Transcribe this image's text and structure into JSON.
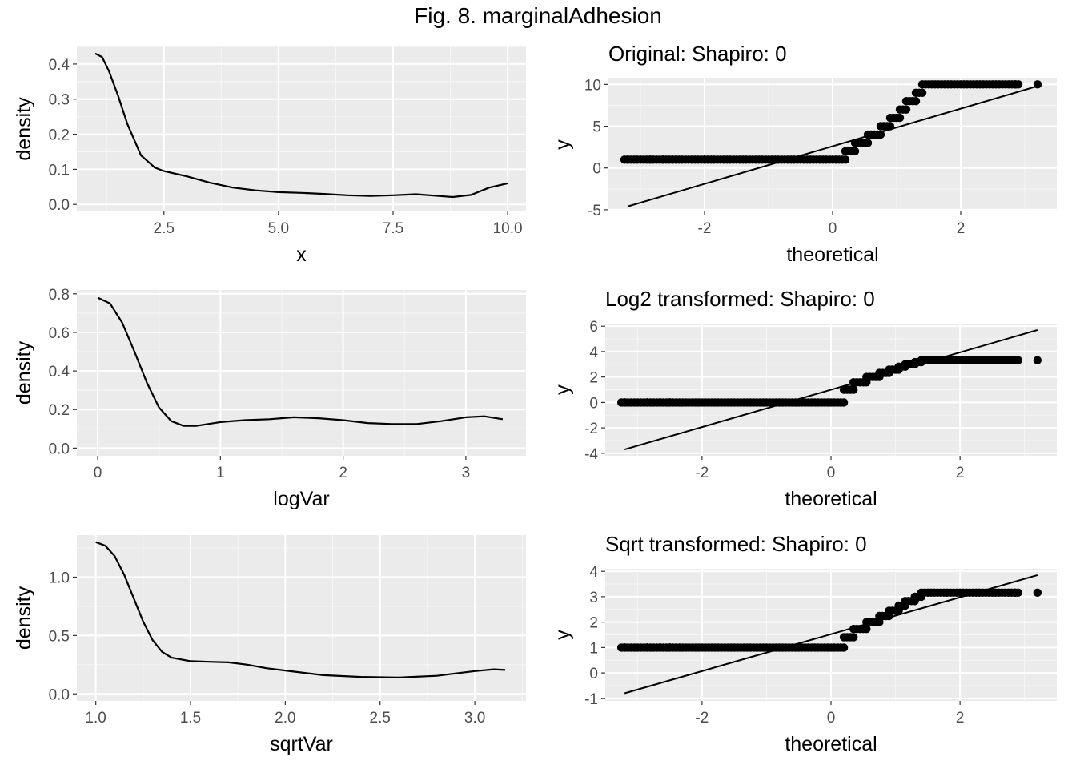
{
  "title": "Fig. 8. marginalAdhesion",
  "chart_data": [
    {
      "type": "line",
      "xlabel": "x",
      "ylabel": "density",
      "xlim": [
        0.6,
        10.4
      ],
      "ylim": [
        -0.02,
        0.45
      ],
      "xticks": [
        2.5,
        5.0,
        7.5,
        10.0
      ],
      "xtick_labels": [
        "2.5",
        "5.0",
        "7.5",
        "10.0"
      ],
      "yticks": [
        0.0,
        0.1,
        0.2,
        0.3,
        0.4
      ],
      "ytick_labels": [
        "0.0",
        "0.1",
        "0.2",
        "0.3",
        "0.4"
      ],
      "grid": true,
      "x": [
        1.0,
        1.15,
        1.3,
        1.5,
        1.7,
        2.0,
        2.3,
        2.5,
        3.0,
        3.5,
        4.0,
        4.5,
        5.0,
        5.5,
        6.0,
        6.5,
        7.0,
        7.5,
        8.0,
        8.5,
        8.8,
        9.2,
        9.6,
        10.0
      ],
      "y": [
        0.43,
        0.42,
        0.38,
        0.31,
        0.23,
        0.14,
        0.105,
        0.095,
        0.08,
        0.062,
        0.048,
        0.04,
        0.035,
        0.033,
        0.03,
        0.026,
        0.024,
        0.026,
        0.029,
        0.024,
        0.021,
        0.027,
        0.048,
        0.06
      ]
    },
    {
      "type": "scatter",
      "title": "Original: Shapiro: 0",
      "xlabel": "theoretical",
      "ylabel": "y",
      "xlim": [
        -3.5,
        3.5
      ],
      "ylim": [
        -5.2,
        10.8
      ],
      "xticks": [
        -2,
        0,
        2
      ],
      "xtick_labels": [
        "-2",
        "0",
        "2"
      ],
      "yticks": [
        -5,
        0,
        5,
        10
      ],
      "ytick_labels": [
        "-5",
        "0",
        "5",
        "10"
      ],
      "grid": true,
      "segments": [
        {
          "from": -3.25,
          "to": -2.0,
          "y": 1
        },
        {
          "from": -2.0,
          "to": 0.2,
          "y": 1
        },
        {
          "from": 0.2,
          "to": 0.35,
          "y": 2
        },
        {
          "from": 0.35,
          "to": 0.55,
          "y": 3
        },
        {
          "from": 0.55,
          "to": 0.75,
          "y": 4
        },
        {
          "from": 0.75,
          "to": 0.9,
          "y": 5
        },
        {
          "from": 0.9,
          "to": 1.05,
          "y": 6
        },
        {
          "from": 1.05,
          "to": 1.15,
          "y": 7
        },
        {
          "from": 1.15,
          "to": 1.3,
          "y": 8
        },
        {
          "from": 1.3,
          "to": 1.4,
          "y": 9
        },
        {
          "from": 1.4,
          "to": 2.9,
          "y": 10
        }
      ],
      "outliers": [
        [
          -3.2,
          1
        ],
        [
          -2.85,
          1
        ],
        [
          -2.65,
          1
        ],
        [
          -2.5,
          1
        ],
        [
          2.85,
          10
        ],
        [
          3.2,
          10
        ]
      ],
      "ref_line": {
        "x": [
          -3.2,
          3.2
        ],
        "y": [
          -4.6,
          9.8
        ]
      }
    },
    {
      "type": "line",
      "xlabel": "logVar",
      "ylabel": "density",
      "xlim": [
        -0.17,
        3.49
      ],
      "ylim": [
        -0.04,
        0.82
      ],
      "xticks": [
        0,
        1,
        2,
        3
      ],
      "xtick_labels": [
        "0",
        "1",
        "2",
        "3"
      ],
      "yticks": [
        0.0,
        0.2,
        0.4,
        0.6,
        0.8
      ],
      "ytick_labels": [
        "0.0",
        "0.2",
        "0.4",
        "0.6",
        "0.8"
      ],
      "grid": true,
      "x": [
        0.0,
        0.1,
        0.2,
        0.3,
        0.4,
        0.5,
        0.6,
        0.7,
        0.8,
        0.9,
        1.0,
        1.2,
        1.4,
        1.6,
        1.8,
        2.0,
        2.2,
        2.4,
        2.6,
        2.8,
        3.0,
        3.15,
        3.3
      ],
      "y": [
        0.78,
        0.75,
        0.65,
        0.5,
        0.34,
        0.21,
        0.14,
        0.115,
        0.115,
        0.125,
        0.135,
        0.145,
        0.15,
        0.16,
        0.155,
        0.145,
        0.13,
        0.125,
        0.125,
        0.14,
        0.16,
        0.165,
        0.15
      ]
    },
    {
      "type": "scatter",
      "title": "Log2 transformed: Shapiro: 0",
      "xlabel": "theoretical",
      "ylabel": "y",
      "xlim": [
        -3.5,
        3.5
      ],
      "ylim": [
        -4.2,
        6.2
      ],
      "xticks": [
        -2,
        0,
        2
      ],
      "xtick_labels": [
        "-2",
        "0",
        "2"
      ],
      "yticks": [
        -4,
        -2,
        0,
        2,
        4,
        6
      ],
      "ytick_labels": [
        "-4",
        "-2",
        "0",
        "2",
        "4",
        "6"
      ],
      "grid": true,
      "segments": [
        {
          "from": -3.25,
          "to": 0.2,
          "y": 0
        },
        {
          "from": 0.2,
          "to": 0.35,
          "y": 1
        },
        {
          "from": 0.35,
          "to": 0.55,
          "y": 1.58
        },
        {
          "from": 0.55,
          "to": 0.75,
          "y": 2
        },
        {
          "from": 0.75,
          "to": 0.9,
          "y": 2.32
        },
        {
          "from": 0.9,
          "to": 1.05,
          "y": 2.58
        },
        {
          "from": 1.05,
          "to": 1.15,
          "y": 2.81
        },
        {
          "from": 1.15,
          "to": 1.3,
          "y": 3
        },
        {
          "from": 1.3,
          "to": 1.4,
          "y": 3.17
        },
        {
          "from": 1.4,
          "to": 2.9,
          "y": 3.32
        }
      ],
      "outliers": [
        [
          -3.2,
          0
        ],
        [
          -2.85,
          0
        ],
        [
          -2.65,
          0
        ],
        [
          -2.5,
          0
        ],
        [
          2.85,
          3.32
        ],
        [
          3.2,
          3.32
        ]
      ],
      "ref_line": {
        "x": [
          -3.2,
          3.2
        ],
        "y": [
          -3.7,
          5.7
        ]
      }
    },
    {
      "type": "line",
      "xlabel": "sqrtVar",
      "ylabel": "density",
      "xlim": [
        0.9,
        3.27
      ],
      "ylim": [
        -0.06,
        1.36
      ],
      "xticks": [
        1.0,
        1.5,
        2.0,
        2.5,
        3.0
      ],
      "xtick_labels": [
        "1.0",
        "1.5",
        "2.0",
        "2.5",
        "3.0"
      ],
      "yticks": [
        0.0,
        0.5,
        1.0
      ],
      "ytick_labels": [
        "0.0",
        "0.5",
        "1.0"
      ],
      "grid": true,
      "x": [
        1.0,
        1.05,
        1.1,
        1.15,
        1.2,
        1.25,
        1.3,
        1.35,
        1.4,
        1.5,
        1.6,
        1.7,
        1.8,
        1.9,
        2.0,
        2.2,
        2.4,
        2.6,
        2.8,
        2.9,
        3.0,
        3.1,
        3.16
      ],
      "y": [
        1.3,
        1.27,
        1.18,
        1.02,
        0.82,
        0.62,
        0.46,
        0.36,
        0.31,
        0.28,
        0.275,
        0.27,
        0.25,
        0.22,
        0.2,
        0.16,
        0.145,
        0.14,
        0.155,
        0.175,
        0.195,
        0.21,
        0.205
      ]
    },
    {
      "type": "scatter",
      "title": "Sqrt transformed: Shapiro: 0",
      "xlabel": "theoretical",
      "ylabel": "y",
      "xlim": [
        -3.5,
        3.5
      ],
      "ylim": [
        -1.1,
        4.1
      ],
      "xticks": [
        -2,
        0,
        2
      ],
      "xtick_labels": [
        "-2",
        "0",
        "2"
      ],
      "yticks": [
        -1,
        0,
        1,
        2,
        3,
        4
      ],
      "ytick_labels": [
        "-1",
        "0",
        "1",
        "2",
        "3",
        "4"
      ],
      "grid": true,
      "segments": [
        {
          "from": -3.25,
          "to": 0.2,
          "y": 1
        },
        {
          "from": 0.2,
          "to": 0.35,
          "y": 1.41
        },
        {
          "from": 0.35,
          "to": 0.55,
          "y": 1.73
        },
        {
          "from": 0.55,
          "to": 0.75,
          "y": 2
        },
        {
          "from": 0.75,
          "to": 0.9,
          "y": 2.24
        },
        {
          "from": 0.9,
          "to": 1.05,
          "y": 2.45
        },
        {
          "from": 1.05,
          "to": 1.15,
          "y": 2.65
        },
        {
          "from": 1.15,
          "to": 1.3,
          "y": 2.83
        },
        {
          "from": 1.3,
          "to": 1.4,
          "y": 3
        },
        {
          "from": 1.4,
          "to": 2.9,
          "y": 3.16
        }
      ],
      "outliers": [
        [
          -3.2,
          1
        ],
        [
          -2.85,
          1
        ],
        [
          -2.65,
          1
        ],
        [
          -2.5,
          1
        ],
        [
          2.85,
          3.16
        ],
        [
          3.2,
          3.16
        ]
      ],
      "ref_line": {
        "x": [
          -3.2,
          3.2
        ],
        "y": [
          -0.8,
          3.85
        ]
      }
    }
  ]
}
